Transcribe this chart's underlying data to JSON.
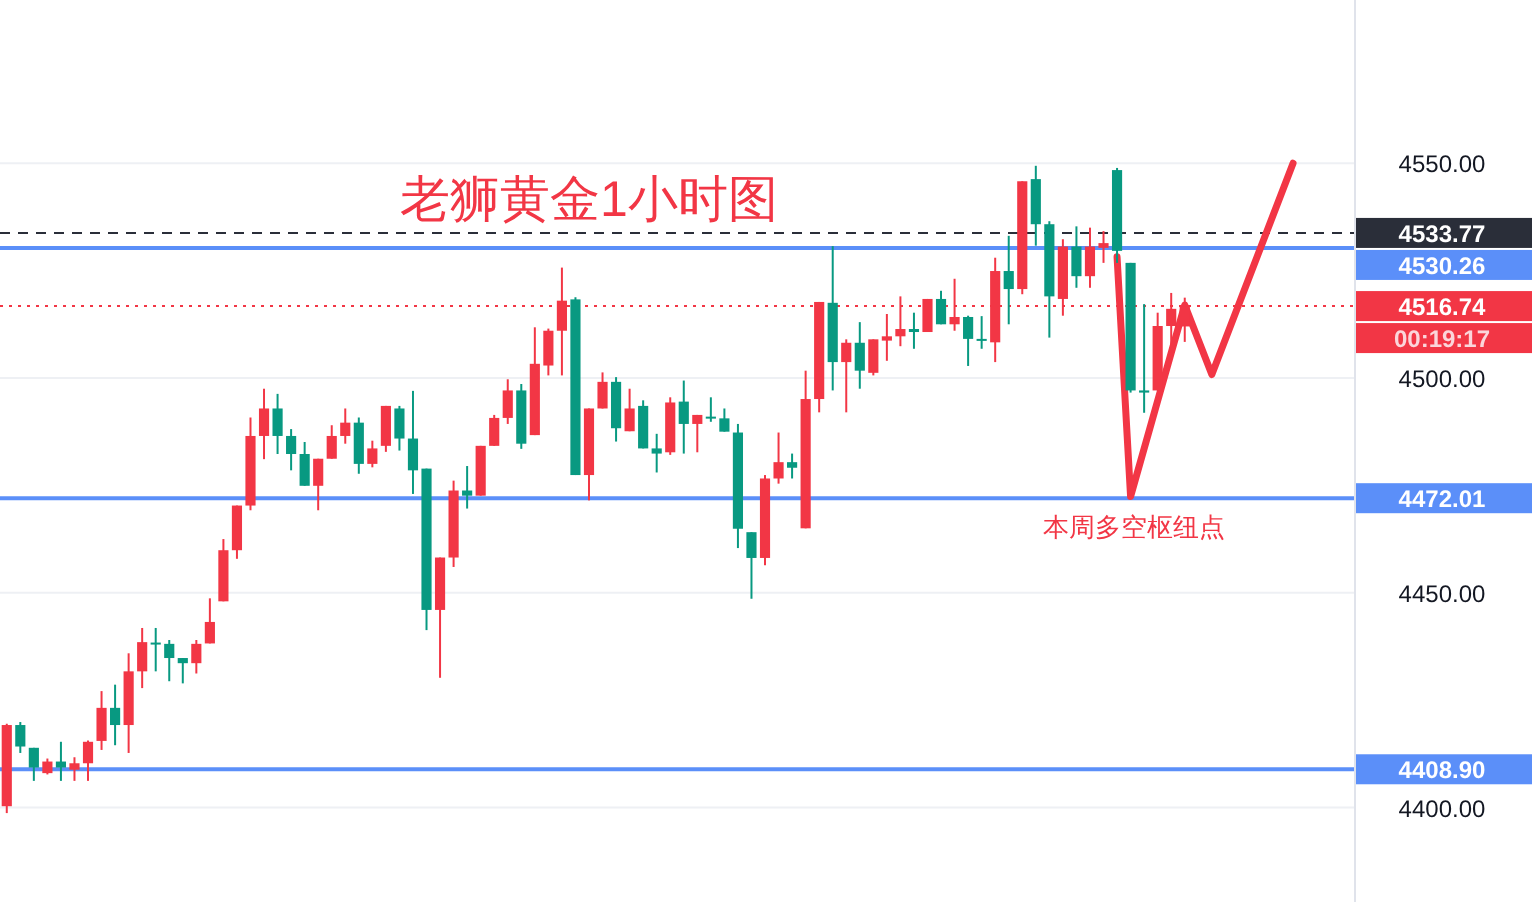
{
  "chart_data": {
    "type": "candlestick",
    "title": "老狮黄金1小时图",
    "categories": [
      null,
      null,
      null,
      null,
      null,
      null,
      null,
      null,
      null,
      null,
      null,
      null,
      null,
      null,
      null,
      null,
      null,
      null,
      null,
      null,
      null,
      null,
      null,
      null,
      null,
      null,
      null,
      null,
      null,
      null,
      null,
      null,
      null,
      null,
      null,
      null,
      null,
      null,
      null,
      null,
      null,
      null,
      null,
      null,
      null,
      null,
      null,
      null,
      null,
      null,
      null,
      null,
      null,
      null,
      null,
      null,
      null,
      null,
      null,
      null,
      null,
      null,
      null,
      null,
      null,
      null,
      null,
      null,
      null,
      null,
      null,
      null,
      null,
      null,
      null,
      null,
      null,
      null,
      null,
      null,
      null,
      null,
      null,
      null,
      null,
      null,
      null,
      null,
      null,
      null,
      null,
      null,
      null,
      null,
      null,
      null,
      null,
      null,
      null,
      null
    ],
    "ohlc": [
      [
        4400.3,
        4419.5,
        4398.7,
        4419.2
      ],
      [
        4419.2,
        4419.9,
        4412.7,
        4414.2
      ],
      [
        4413.9,
        4413.9,
        4406.2,
        4409.3
      ],
      [
        4408.0,
        4411.4,
        4407.7,
        4410.7
      ],
      [
        4410.7,
        4415.3,
        4406.2,
        4409.3
      ],
      [
        4408.8,
        4411.7,
        4406.2,
        4410.3
      ],
      [
        4410.3,
        4415.6,
        4406.2,
        4415.3
      ],
      [
        4415.5,
        4427.1,
        4413.4,
        4423.2
      ],
      [
        4423.2,
        4428.6,
        4414.5,
        4419.2
      ],
      [
        4419.2,
        4435.9,
        4412.7,
        4431.7
      ],
      [
        4431.7,
        4441.8,
        4427.8,
        4438.5
      ],
      [
        4438.4,
        4441.8,
        4431.7,
        4438.1
      ],
      [
        4438.1,
        4439.0,
        4429.4,
        4434.8
      ],
      [
        4434.8,
        4434.8,
        4428.9,
        4433.6
      ],
      [
        4433.6,
        4439.0,
        4431.2,
        4438.1
      ],
      [
        4438.2,
        4448.7,
        4438.2,
        4443.2
      ],
      [
        4448.0,
        4462.5,
        4448.0,
        4459.9
      ],
      [
        4459.9,
        4470.3,
        4457.9,
        4470.3
      ],
      [
        4470.3,
        4490.8,
        4469.2,
        4486.5
      ],
      [
        4486.5,
        4497.5,
        4481.1,
        4492.9
      ],
      [
        4492.9,
        4496.3,
        4482.3,
        4486.5
      ],
      [
        4486.5,
        4488.1,
        4478.5,
        4482.3
      ],
      [
        4482.3,
        4485.1,
        4474.9,
        4474.9
      ],
      [
        4474.9,
        4481.2,
        4469.2,
        4481.2
      ],
      [
        4481.2,
        4489.0,
        4481.2,
        4486.5
      ],
      [
        4486.5,
        4492.9,
        4484.7,
        4489.6
      ],
      [
        4489.6,
        4490.8,
        4477.7,
        4480.0
      ],
      [
        4480.0,
        4485.4,
        4479.2,
        4483.6
      ],
      [
        4484.2,
        4493.5,
        4482.8,
        4493.5
      ],
      [
        4492.9,
        4493.5,
        4483.1,
        4485.9
      ],
      [
        4485.9,
        4497.0,
        4473.0,
        4478.5
      ],
      [
        4478.9,
        4478.9,
        4441.3,
        4446.0
      ],
      [
        4446.0,
        4458.2,
        4430.2,
        4458.2
      ],
      [
        4458.2,
        4476.1,
        4456.0,
        4473.8
      ],
      [
        4473.8,
        4479.5,
        4469.6,
        4472.6
      ],
      [
        4472.6,
        4484.2,
        4472.6,
        4484.2
      ],
      [
        4484.2,
        4491.4,
        4484.2,
        4490.7
      ],
      [
        4490.7,
        4499.7,
        4489.3,
        4497.1
      ],
      [
        4497.1,
        4498.6,
        4483.5,
        4484.7
      ],
      [
        4486.7,
        4511.8,
        4486.7,
        4503.3
      ],
      [
        4502.9,
        4511.5,
        4500.6,
        4511.0
      ],
      [
        4511.0,
        4525.7,
        4500.6,
        4518.0
      ],
      [
        4518.3,
        4518.8,
        4477.4,
        4477.4
      ],
      [
        4477.4,
        4492.9,
        4471.5,
        4492.9
      ],
      [
        4492.9,
        4501.3,
        4492.9,
        4499.1
      ],
      [
        4499.1,
        4500.2,
        4485.2,
        4488.3
      ],
      [
        4487.6,
        4497.5,
        4487.6,
        4492.9
      ],
      [
        4493.5,
        4494.8,
        4483.6,
        4483.6
      ],
      [
        4483.6,
        4487.0,
        4478.0,
        4482.4
      ],
      [
        4482.7,
        4495.5,
        4482.1,
        4494.3
      ],
      [
        4494.5,
        4499.4,
        4482.4,
        4489.3
      ],
      [
        4489.3,
        4491.4,
        4482.7,
        4491.4
      ],
      [
        4491.0,
        4495.5,
        4489.8,
        4490.8
      ],
      [
        4490.6,
        4492.9,
        4487.5,
        4487.5
      ],
      [
        4487.3,
        4489.3,
        4460.4,
        4464.9
      ],
      [
        4464.1,
        4464.1,
        4448.6,
        4458.1
      ],
      [
        4458.1,
        4477.4,
        4456.4,
        4476.6
      ],
      [
        4476.6,
        4487.3,
        4475.4,
        4480.4
      ],
      [
        4480.4,
        4482.4,
        4476.6,
        4479.1
      ],
      [
        4465.0,
        4501.7,
        4465.0,
        4495.1
      ],
      [
        4495.1,
        4517.7,
        4492.0,
        4517.7
      ],
      [
        4517.5,
        4530.7,
        4497.1,
        4503.7
      ],
      [
        4503.7,
        4509.0,
        4492.0,
        4508.2
      ],
      [
        4508.2,
        4513.0,
        4497.5,
        4501.7
      ],
      [
        4501.2,
        4509.0,
        4500.6,
        4509.0
      ],
      [
        4508.7,
        4514.9,
        4504.0,
        4509.7
      ],
      [
        4509.7,
        4519.0,
        4507.4,
        4511.4
      ],
      [
        4511.4,
        4515.2,
        4506.8,
        4510.7
      ],
      [
        4510.7,
        4518.4,
        4510.7,
        4518.4
      ],
      [
        4518.4,
        4520.3,
        4512.5,
        4512.5
      ],
      [
        4512.5,
        4523.1,
        4511.0,
        4514.2
      ],
      [
        4514.2,
        4514.5,
        4502.8,
        4509.1
      ],
      [
        4509.1,
        4514.4,
        4506.8,
        4508.7
      ],
      [
        4508.3,
        4528.0,
        4503.7,
        4524.9
      ],
      [
        4524.9,
        4533.1,
        4512.5,
        4520.7
      ],
      [
        4520.7,
        4545.8,
        4519.5,
        4545.8
      ],
      [
        4546.3,
        4549.4,
        4530.8,
        4535.8
      ],
      [
        4535.8,
        4536.5,
        4509.4,
        4519.0
      ],
      [
        4518.4,
        4532.3,
        4514.5,
        4530.6
      ],
      [
        4530.6,
        4535.3,
        4521.0,
        4523.7
      ],
      [
        4523.7,
        4535.0,
        4521.0,
        4530.6
      ],
      [
        4530.3,
        4534.2,
        4526.8,
        4531.4
      ],
      [
        4548.4,
        4548.9,
        4526.8,
        4529.6
      ],
      [
        4526.8,
        4526.8,
        4496.6,
        4497.1
      ],
      [
        4497.1,
        4517.2,
        4491.9,
        4496.6
      ],
      [
        4497.1,
        4515.2,
        4497.1,
        4512.1
      ],
      [
        4512.1,
        4519.8,
        4507.9,
        4516.1
      ],
      [
        4512.0,
        4518.7,
        4508.4,
        4516.74
      ],
      null,
      null,
      null,
      null,
      null,
      null,
      null,
      null,
      null,
      null,
      null,
      null
    ],
    "colors": [
      "#f23645",
      "#089981",
      "#089981",
      "#f23645",
      "#089981",
      "#f23645",
      "#f23645",
      "#f23645",
      "#089981",
      "#f23645",
      "#f23645",
      "#089981",
      "#089981",
      "#089981",
      "#f23645",
      "#f23645",
      "#f23645",
      "#f23645",
      "#f23645",
      "#f23645",
      "#089981",
      "#089981",
      "#089981",
      "#f23645",
      "#f23645",
      "#f23645",
      "#089981",
      "#f23645",
      "#f23645",
      "#089981",
      "#089981",
      "#089981",
      "#f23645",
      "#f23645",
      "#089981",
      "#f23645",
      "#f23645",
      "#f23645",
      "#089981",
      "#f23645",
      "#f23645",
      "#f23645",
      "#089981",
      "#f23645",
      "#f23645",
      "#089981",
      "#f23645",
      "#089981",
      "#089981",
      "#f23645",
      "#089981",
      "#f23645",
      "#089981",
      "#089981",
      "#089981",
      "#089981",
      "#f23645",
      "#f23645",
      "#089981",
      "#f23645",
      "#f23645",
      "#089981",
      "#f23645",
      "#089981",
      "#f23645",
      "#f23645",
      "#f23645",
      "#089981",
      "#f23645",
      "#089981",
      "#f23645",
      "#089981",
      "#089981",
      "#f23645",
      "#089981",
      "#f23645",
      "#089981",
      "#089981",
      "#f23645",
      "#089981",
      "#f23645",
      "#f23645",
      "#089981",
      "#089981",
      "#089981",
      "#f23645",
      "#f23645",
      "#f23645",
      null,
      null,
      null,
      null,
      null,
      null,
      null,
      null,
      null,
      null,
      null,
      null
    ],
    "series": [
      {
        "type": "line",
        "color": "#f23645",
        "values": [
          null,
          null,
          null,
          null,
          null,
          null,
          null,
          null,
          null,
          null,
          null,
          null,
          null,
          null,
          null,
          null,
          null,
          null,
          null,
          null,
          null,
          null,
          null,
          null,
          null,
          null,
          null,
          null,
          null,
          null,
          null,
          null,
          null,
          null,
          null,
          null,
          null,
          null,
          null,
          null,
          null,
          null,
          null,
          null,
          null,
          null,
          null,
          null,
          null,
          null,
          null,
          null,
          null,
          null,
          null,
          null,
          null,
          null,
          null,
          null,
          null,
          null,
          null,
          null,
          null,
          null,
          null,
          null,
          null,
          null,
          null,
          null,
          null,
          null,
          null,
          null,
          null,
          null,
          null,
          null,
          null,
          null,
          4528.2,
          4472.4,
          null,
          null,
          null,
          4517.0,
          null,
          4500.8,
          null,
          null,
          null,
          null,
          null,
          4550,
          null,
          null,
          null,
          null
        ]
      }
    ],
    "ylim": [
      4378,
      4588
    ],
    "yticks": [
      {
        "value": 4400,
        "label": "4400.00"
      },
      {
        "value": 4450,
        "label": "4450.00"
      },
      {
        "value": 4500,
        "label": "4500.00"
      },
      {
        "value": 4550,
        "label": "4550.00"
      }
    ],
    "grid": "y",
    "ref_lines": [
      {
        "axis": "y",
        "value": 4530.26,
        "label": "4530.26",
        "color": "#5b8ff9"
      },
      {
        "axis": "y",
        "value": 4472.01,
        "label": "4472.01",
        "color": "#5b8ff9"
      },
      {
        "axis": "y",
        "value": 4408.9,
        "label": "4408.90",
        "color": "#5b8ff9"
      },
      {
        "axis": "y",
        "value": 4533.77,
        "label": "4533.77",
        "color": "#2a2e39",
        "line_style": "dashed"
      },
      {
        "axis": "y",
        "value": 4516.74,
        "label": "4516.74",
        "color": "#f23645",
        "line_style": "dotted"
      }
    ],
    "annotations": [
      "00:19:17",
      {
        "text": "本周多空枢纽点",
        "y": 4472.01
      }
    ]
  }
}
